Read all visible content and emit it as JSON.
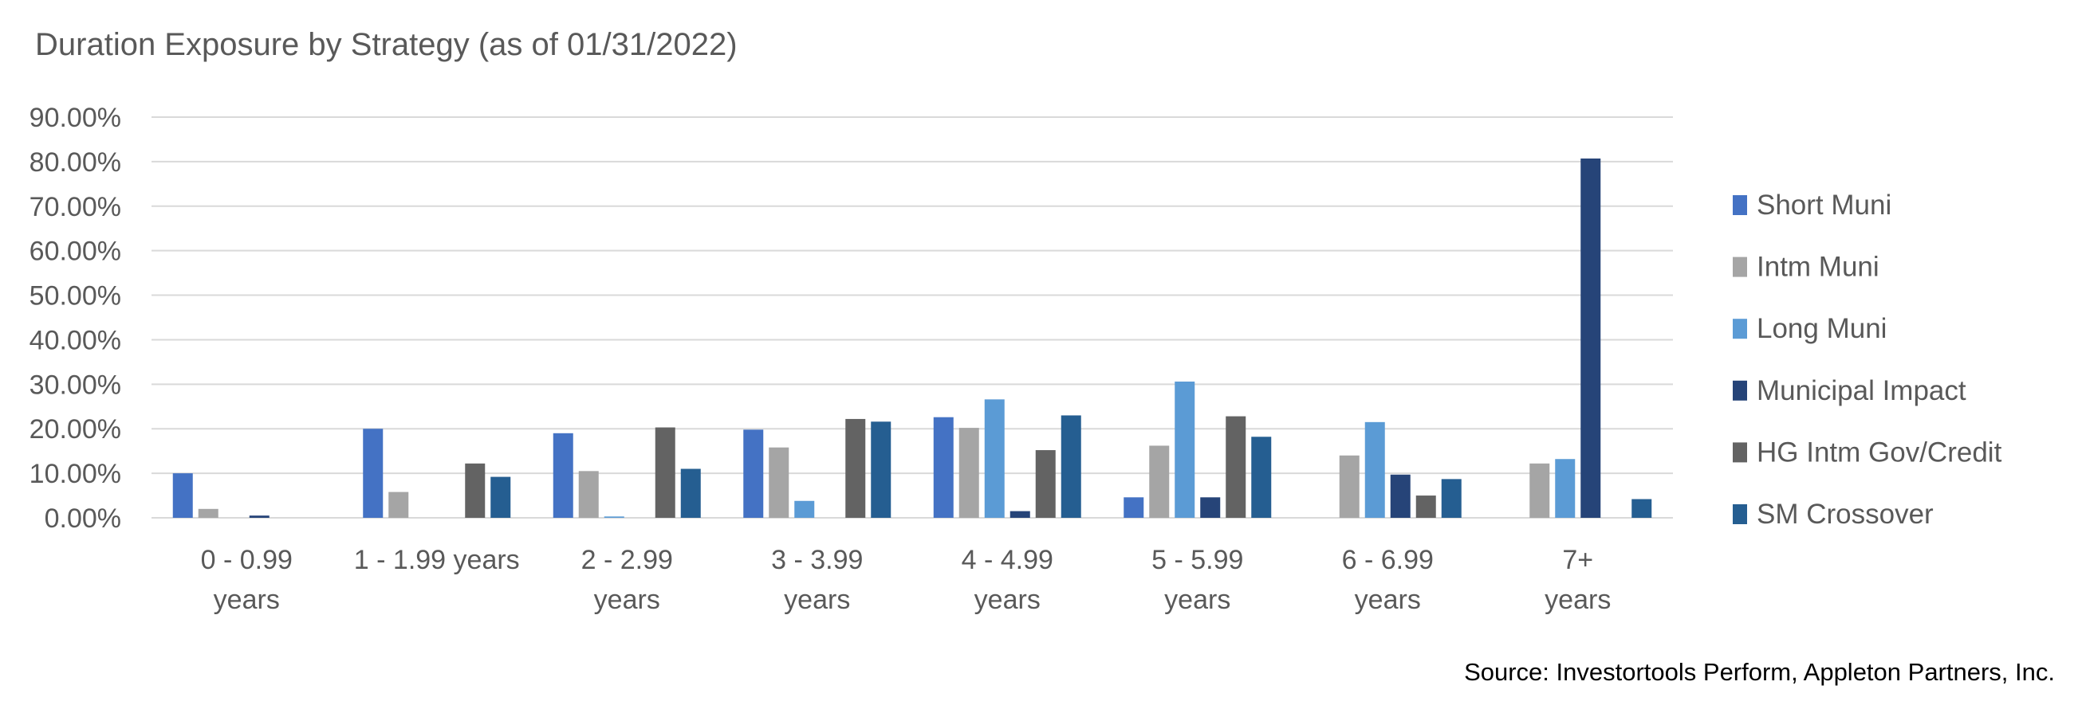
{
  "chart_data": {
    "type": "bar",
    "title": "Duration Exposure by Strategy (as of 01/31/2022)",
    "source": "Source: Investortools Perform, Appleton Partners, Inc.",
    "categories": [
      [
        "0 - 0.99",
        "years"
      ],
      [
        "1 - 1.99  years"
      ],
      [
        "2 - 2.99",
        "years"
      ],
      [
        "3 - 3.99",
        "years"
      ],
      [
        "4 - 4.99",
        "years"
      ],
      [
        "5 - 5.99",
        "years"
      ],
      [
        "6 - 6.99",
        "years"
      ],
      [
        "7+",
        "years"
      ]
    ],
    "ylim": [
      0,
      90
    ],
    "yticks": [
      "0.00%",
      "10.00%",
      "20.00%",
      "30.00%",
      "40.00%",
      "50.00%",
      "60.00%",
      "70.00%",
      "80.00%",
      "90.00%"
    ],
    "grid": true,
    "legend_position": "right",
    "series": [
      {
        "name": "Short Muni",
        "color": "#4472C4",
        "values": [
          10.0,
          20.0,
          19.0,
          19.8,
          22.6,
          4.6,
          0,
          0
        ]
      },
      {
        "name": "Intm Muni",
        "color": "#A5A5A5",
        "values": [
          2.0,
          5.8,
          10.5,
          15.8,
          20.2,
          16.2,
          14.0,
          12.2
        ]
      },
      {
        "name": "Long Muni",
        "color": "#5B9BD5",
        "values": [
          0,
          0,
          0.3,
          3.8,
          26.6,
          30.6,
          21.5,
          13.2
        ]
      },
      {
        "name": "Municipal Impact",
        "color": "#264478",
        "values": [
          0.5,
          0,
          0,
          0,
          1.5,
          4.6,
          9.7,
          80.7
        ]
      },
      {
        "name": "HG Intm Gov/Credit",
        "color": "#636363",
        "values": [
          0,
          12.2,
          20.3,
          22.2,
          15.2,
          22.8,
          5.0,
          0
        ]
      },
      {
        "name": "SM Crossover",
        "color": "#255E91",
        "values": [
          0,
          9.2,
          11.0,
          21.6,
          23.0,
          18.2,
          8.7,
          4.2
        ]
      }
    ]
  }
}
